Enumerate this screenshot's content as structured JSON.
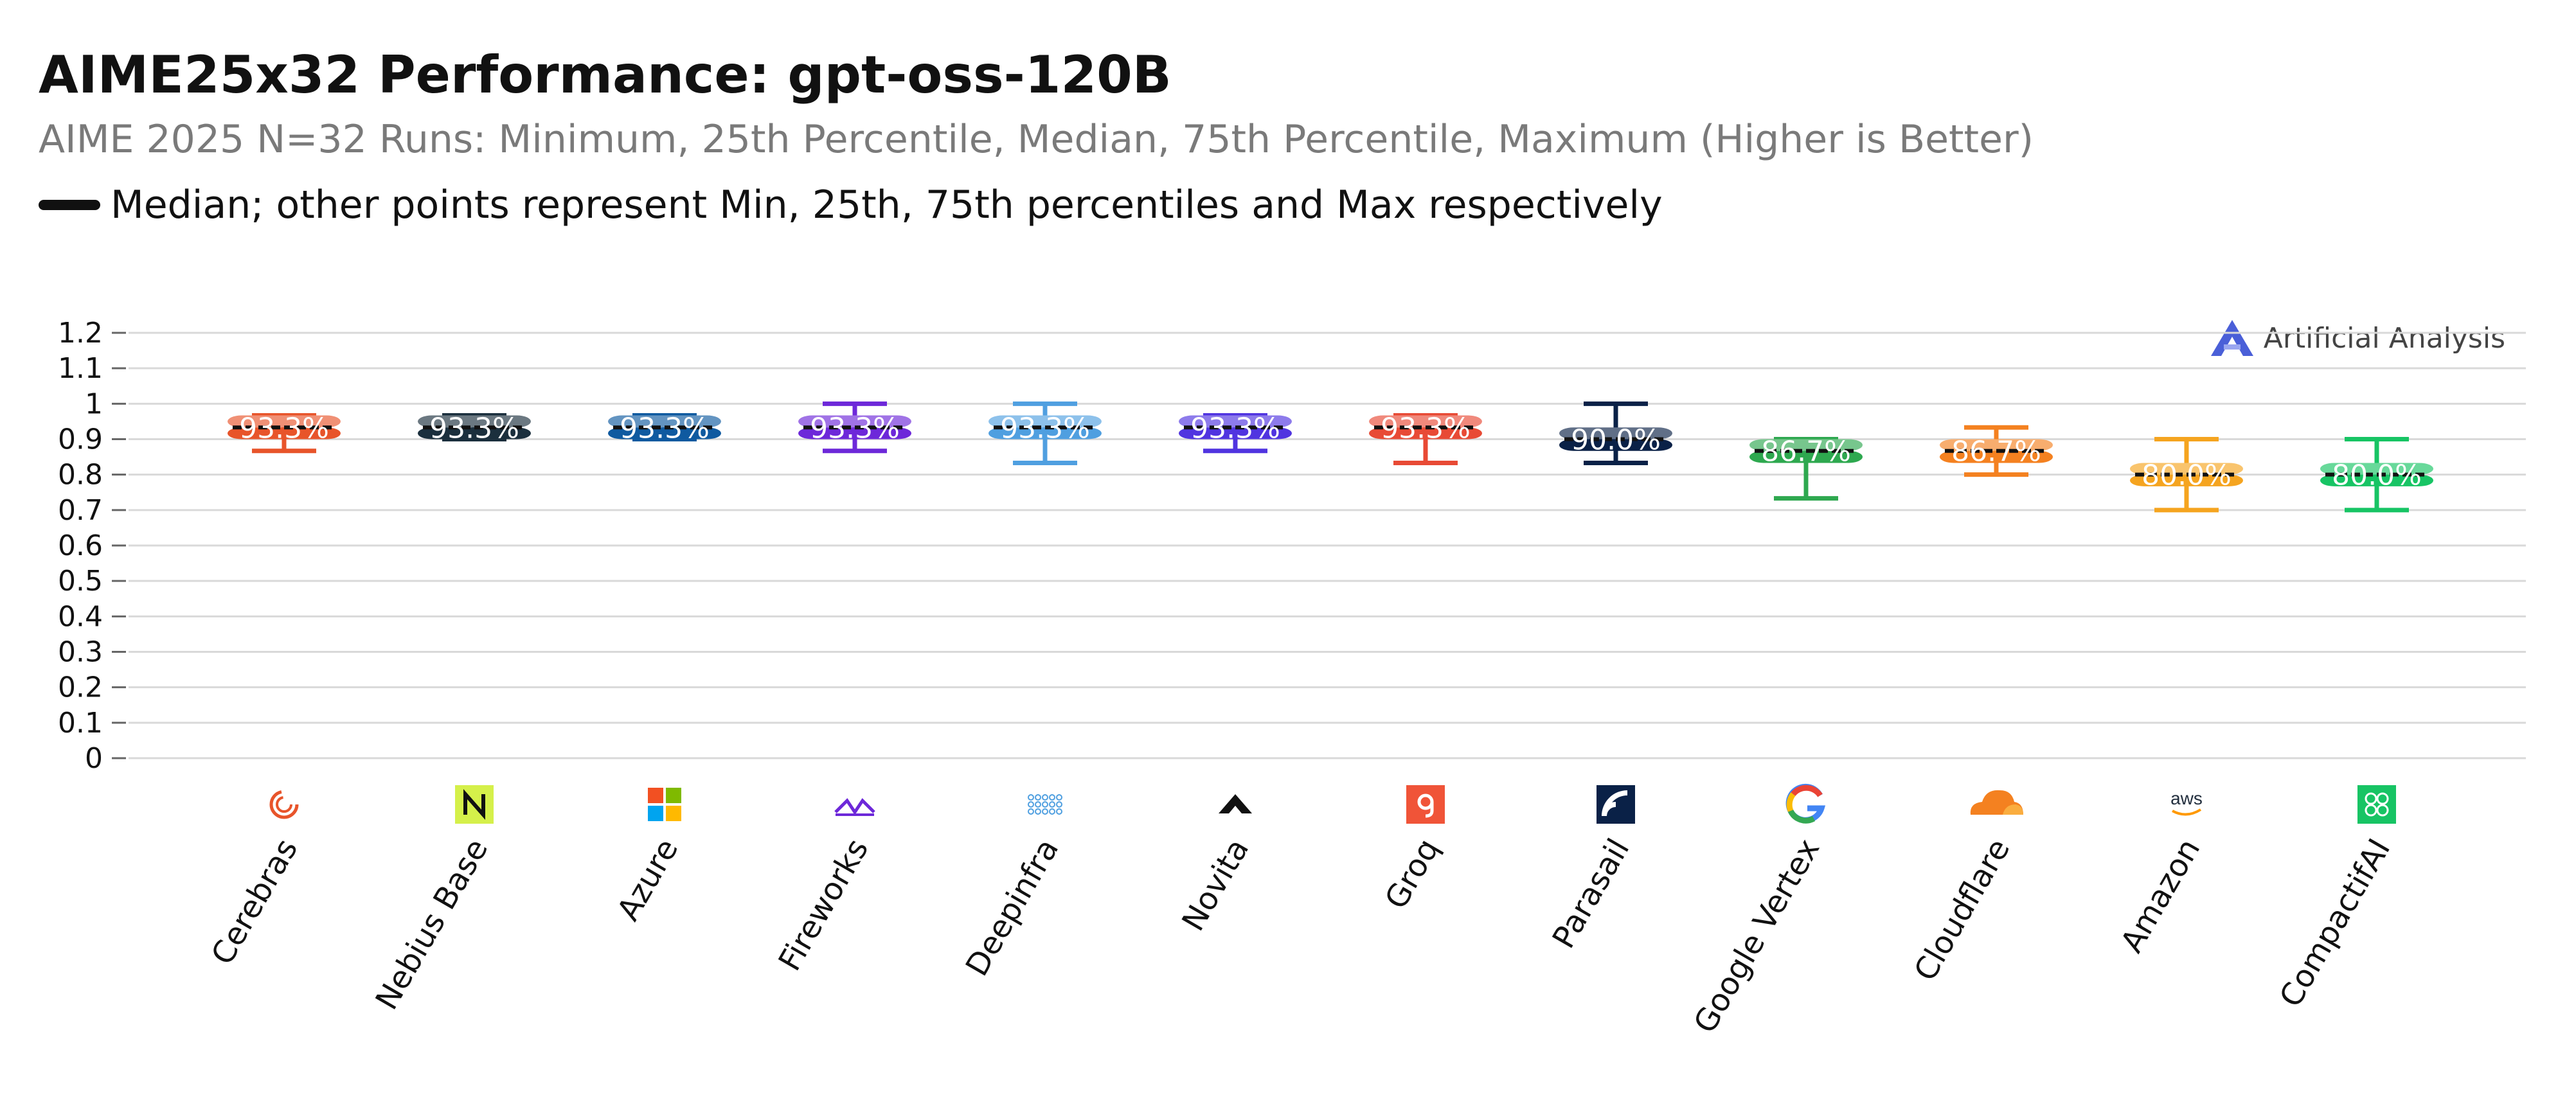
{
  "header": {
    "title": "AIME25x32 Performance: gpt-oss-120B",
    "subtitle": "AIME 2025 N=32 Runs: Minimum, 25th Percentile, Median, 75th Percentile, Maximum (Higher is Better)",
    "legend_text": "Median; other points represent Min, 25th, 75th percentiles and Max respectively"
  },
  "brand": {
    "name": "Artificial Analysis",
    "icon": "artificial-analysis-logo-icon"
  },
  "chart_data": {
    "type": "box",
    "title": "AIME25x32 Performance: gpt-oss-120B",
    "subtitle": "AIME 2025 N=32 Runs: Minimum, 25th Percentile, Median, 75th Percentile, Maximum (Higher is Better)",
    "ylim": [
      0,
      1.2
    ],
    "yticks": [
      "0",
      "0.1",
      "0.2",
      "0.3",
      "0.4",
      "0.5",
      "0.6",
      "0.7",
      "0.8",
      "0.9",
      "1",
      "1.1",
      "1.2"
    ],
    "grid": true,
    "categories": [
      "Cerebras",
      "Nebius Base",
      "Azure",
      "Fireworks",
      "Deepinfra",
      "Novita",
      "Groq",
      "Parasail",
      "Google Vertex",
      "Cloudflare",
      "Amazon",
      "CompactifAI"
    ],
    "series": [
      {
        "provider": "Cerebras",
        "min": 0.867,
        "q1": 0.9,
        "median": 0.933,
        "q3": 0.967,
        "max": 0.967,
        "label": "93.3%",
        "color": "#e8542a",
        "icon": "cerebras-logo-icon"
      },
      {
        "provider": "Nebius Base",
        "min": 0.9,
        "q1": 0.9,
        "median": 0.933,
        "q3": 0.967,
        "max": 0.967,
        "label": "93.3%",
        "color": "#1b2f3d",
        "icon": "nebius-logo-icon"
      },
      {
        "provider": "Azure",
        "min": 0.9,
        "q1": 0.9,
        "median": 0.933,
        "q3": 0.967,
        "max": 0.967,
        "label": "93.3%",
        "color": "#0f5aa0",
        "icon": "microsoft-logo-icon"
      },
      {
        "provider": "Fireworks",
        "min": 0.867,
        "q1": 0.9,
        "median": 0.933,
        "q3": 0.967,
        "max": 1.0,
        "label": "93.3%",
        "color": "#6d28d9",
        "icon": "fireworks-logo-icon"
      },
      {
        "provider": "Deepinfra",
        "min": 0.833,
        "q1": 0.9,
        "median": 0.933,
        "q3": 0.967,
        "max": 1.0,
        "label": "93.3%",
        "color": "#4f9fe0",
        "icon": "deepinfra-logo-icon"
      },
      {
        "provider": "Novita",
        "min": 0.867,
        "q1": 0.9,
        "median": 0.933,
        "q3": 0.967,
        "max": 0.967,
        "label": "93.3%",
        "color": "#5034e0",
        "icon": "novita-logo-icon"
      },
      {
        "provider": "Groq",
        "min": 0.833,
        "q1": 0.9,
        "median": 0.933,
        "q3": 0.967,
        "max": 0.967,
        "label": "93.3%",
        "color": "#e84a35",
        "icon": "groq-logo-icon"
      },
      {
        "provider": "Parasail",
        "min": 0.833,
        "q1": 0.867,
        "median": 0.9,
        "q3": 0.933,
        "max": 1.0,
        "label": "90.0%",
        "color": "#0a2147",
        "icon": "parasail-logo-icon"
      },
      {
        "provider": "Google Vertex",
        "min": 0.733,
        "q1": 0.833,
        "median": 0.867,
        "q3": 0.9,
        "max": 0.9,
        "label": "86.7%",
        "color": "#2ea84f",
        "icon": "google-logo-icon"
      },
      {
        "provider": "Cloudflare",
        "min": 0.8,
        "q1": 0.833,
        "median": 0.867,
        "q3": 0.9,
        "max": 0.933,
        "label": "86.7%",
        "color": "#f48120",
        "icon": "cloudflare-logo-icon"
      },
      {
        "provider": "Amazon",
        "min": 0.7,
        "q1": 0.767,
        "median": 0.8,
        "q3": 0.833,
        "max": 0.9,
        "label": "80.0%",
        "color": "#f5a41f",
        "icon": "aws-logo-icon"
      },
      {
        "provider": "CompactifAI",
        "min": 0.7,
        "q1": 0.767,
        "median": 0.8,
        "q3": 0.833,
        "max": 0.9,
        "label": "80.0%",
        "color": "#17c464",
        "icon": "compactifai-logo-icon"
      }
    ]
  }
}
